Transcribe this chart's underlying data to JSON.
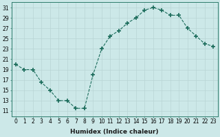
{
  "x": [
    0,
    1,
    2,
    3,
    4,
    5,
    6,
    7,
    8,
    9,
    10,
    11,
    12,
    13,
    14,
    15,
    16,
    17,
    18,
    19,
    20,
    21,
    22,
    23
  ],
  "y": [
    20,
    19,
    19,
    16.5,
    15,
    13,
    13,
    11.5,
    11.5,
    18,
    23,
    25.5,
    26.5,
    28,
    29,
    30.5,
    31,
    30.5,
    29.5,
    29.5,
    27,
    25.5,
    24,
    23.5
  ],
  "line_color": "#1a6b5a",
  "marker_color": "#1a6b5a",
  "bg_color": "#cce8e8",
  "grid_color": "#b8d4d4",
  "xlabel": "Humidex (Indice chaleur)",
  "ylabel": "",
  "xlim": [
    -0.5,
    23.5
  ],
  "ylim": [
    10,
    32
  ],
  "yticks": [
    11,
    13,
    15,
    17,
    19,
    21,
    23,
    25,
    27,
    29,
    31
  ],
  "xticks": [
    0,
    1,
    2,
    3,
    4,
    5,
    6,
    7,
    8,
    9,
    10,
    11,
    12,
    13,
    14,
    15,
    16,
    17,
    18,
    19,
    20,
    21,
    22,
    23
  ],
  "xlabel_fontsize": 6.5,
  "tick_fontsize": 5.5
}
